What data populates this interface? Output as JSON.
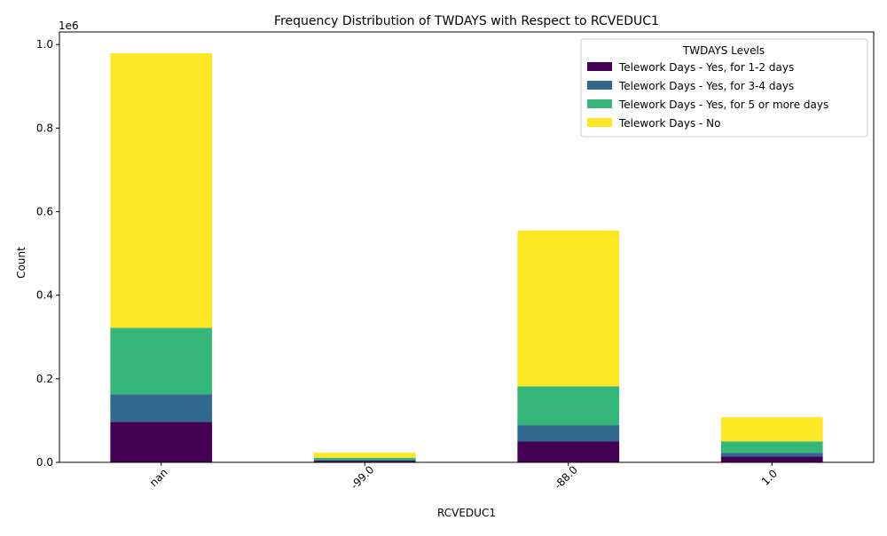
{
  "chart_data": {
    "type": "bar",
    "stacked": true,
    "title": "Frequency Distribution of TWDAYS with Respect to RCVEDUC1",
    "xlabel": "RCVEDUC1",
    "ylabel": "Count",
    "y_offset_label": "1e6",
    "y_scale_factor": 1000000,
    "categories": [
      "nan",
      "-99.0",
      "-88.0",
      "1.0"
    ],
    "ylim": [
      0,
      1030000
    ],
    "yticks": [
      0,
      200000,
      400000,
      600000,
      800000,
      1000000
    ],
    "ytick_labels": [
      "0.0",
      "0.2",
      "0.4",
      "0.6",
      "0.8",
      "1.0"
    ],
    "legend": {
      "title": "TWDAYS Levels",
      "placement": "top-right"
    },
    "series": [
      {
        "name": "Telework Days - Yes, for 1-2 days",
        "color": "#440154",
        "values": [
          97000,
          4000,
          50000,
          14000
        ]
      },
      {
        "name": "Telework Days - Yes, for 3-4 days",
        "color": "#31688e",
        "values": [
          66000,
          2000,
          39000,
          9000
        ]
      },
      {
        "name": "Telework Days - Yes, for 5 or more days",
        "color": "#35b779",
        "values": [
          159000,
          5000,
          93000,
          27000
        ]
      },
      {
        "name": "Telework Days - No",
        "color": "#fde725",
        "values": [
          657000,
          12000,
          373000,
          58000
        ]
      }
    ]
  }
}
